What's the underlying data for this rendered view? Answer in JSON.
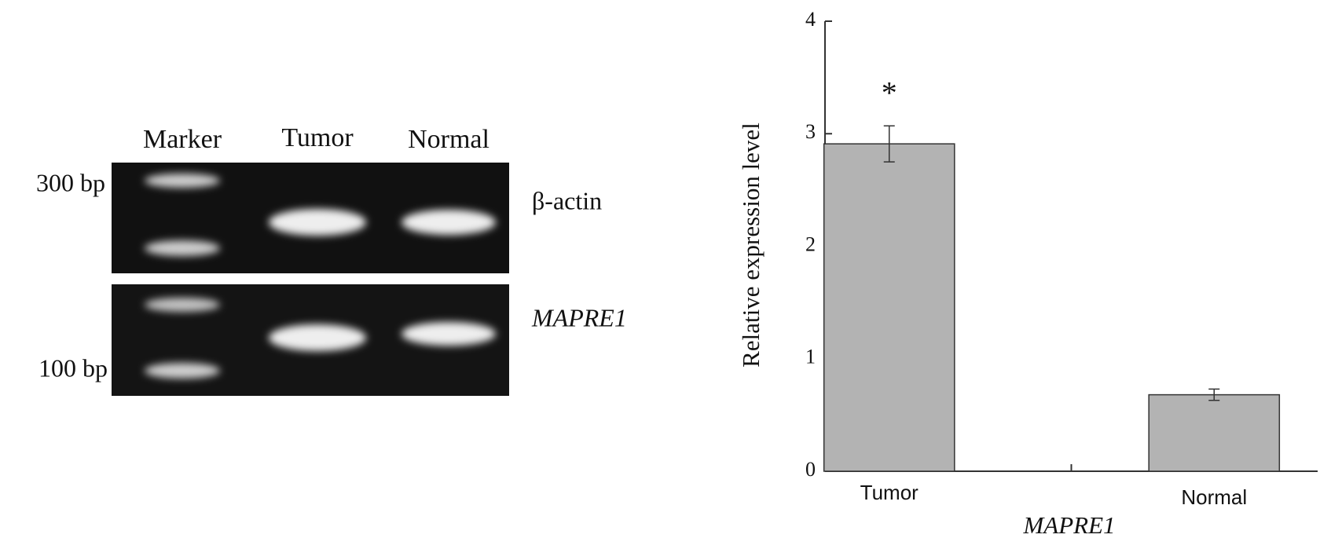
{
  "gel": {
    "lanes": [
      "Marker",
      "Tumor",
      "Normal"
    ],
    "size_labels": [
      "300 bp",
      "100 bp"
    ],
    "genes": [
      "β-actin",
      "MAPRE1"
    ]
  },
  "chart_data": {
    "type": "bar",
    "y_label": "Relative expression level",
    "x_label": "MAPRE1",
    "categories": [
      "Tumor",
      "Normal"
    ],
    "values": [
      2.91,
      0.68
    ],
    "errors": [
      0.16,
      0.05
    ],
    "annotation": "*",
    "color": "#b3b3b3",
    "ylim": [
      0,
      4
    ],
    "yticks": [
      0,
      1,
      2,
      3,
      4
    ]
  }
}
